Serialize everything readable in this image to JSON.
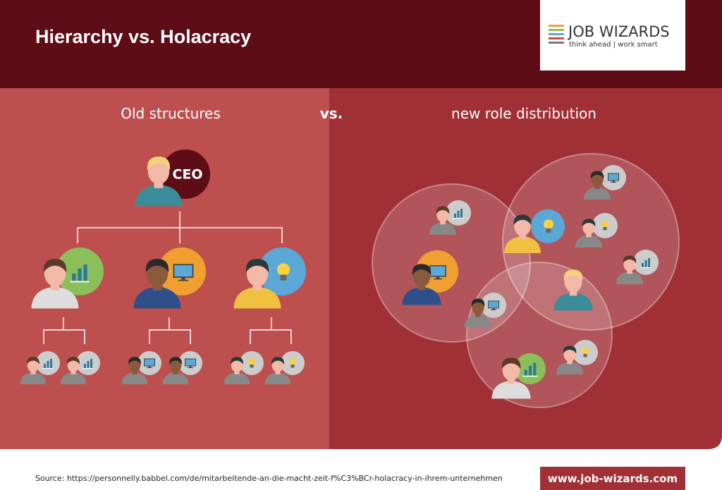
{
  "header": {
    "title": "Hierarchy vs. Holacracy",
    "logo": {
      "name": "JOB WIZARDS",
      "tagline": "think ahead | work smart"
    }
  },
  "left": {
    "heading": "Old structures",
    "ceo_label": "CEO"
  },
  "vs": "vs.",
  "right": {
    "heading": "new role distribution"
  },
  "footer": {
    "source": "Source: https://personnelly.babbel.com/de/mitarbeitende-an-die-macht-zeit-f%C3%BCr-holacracy-in-ihrem-unternehmen",
    "website": "www.job-wizards.com"
  }
}
